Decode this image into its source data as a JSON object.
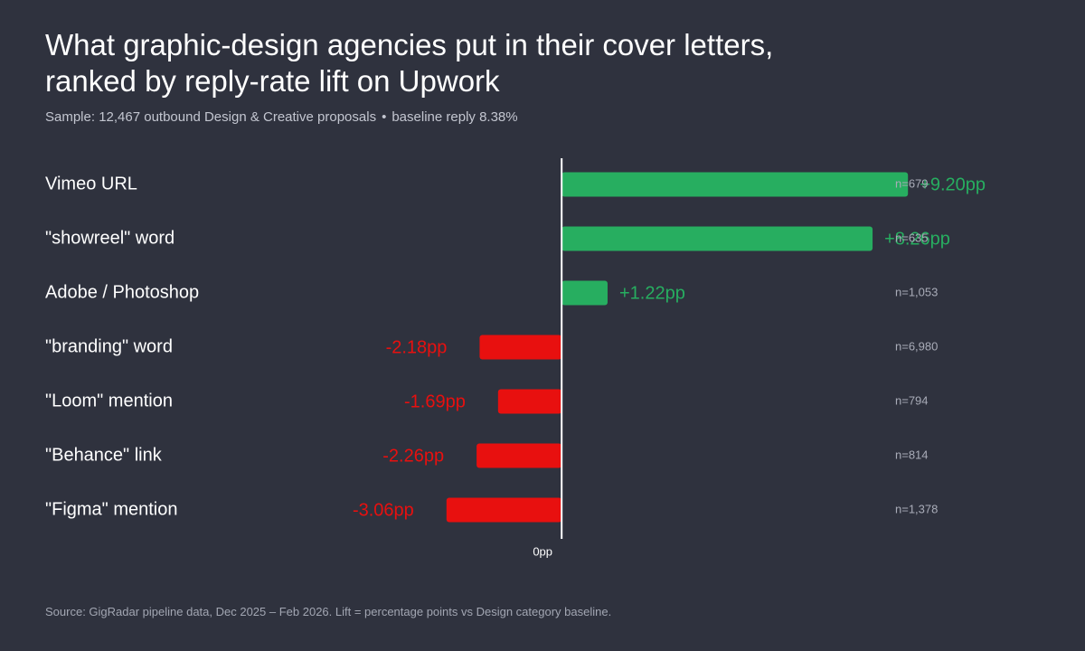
{
  "title_lines": [
    "What graphic-design agencies put in their cover letters,",
    "ranked by reply-rate lift on Upwork"
  ],
  "subtitle": {
    "sample": "Sample: 12,467 outbound Design & Creative proposals",
    "separator": "•",
    "baseline": "baseline reply 8.38%"
  },
  "source": "Source: GigRadar pipeline data, Dec 2025 – Feb 2026. Lift = percentage points vs Design category baseline.",
  "colors": {
    "positive": "#27ae60",
    "negative": "#e8100f",
    "axis": "#ffffff"
  },
  "chart_data": {
    "type": "bar",
    "orientation": "horizontal",
    "categories": [
      "Vimeo URL",
      "\"showreel\" word",
      "Adobe / Photoshop",
      "\"branding\" word",
      "\"Loom\" mention",
      "\"Behance\" link",
      "\"Figma\" mention"
    ],
    "values": [
      9.2,
      8.26,
      1.22,
      -2.18,
      -1.69,
      -2.26,
      -3.06
    ],
    "value_labels": [
      "+9.20pp",
      "+8.26pp",
      "+1.22pp",
      "-2.18pp",
      "-1.69pp",
      "-2.26pp",
      "-3.06pp"
    ],
    "n_labels": [
      "n=679",
      "n=635",
      "n=1,053",
      "n=6,980",
      "n=794",
      "n=814",
      "n=1,378"
    ],
    "x_tick_labels": [
      "0pp"
    ],
    "x_ticks": [
      0
    ],
    "xlim": [
      -13.72,
      10.06
    ],
    "grid": false,
    "legend": false
  }
}
